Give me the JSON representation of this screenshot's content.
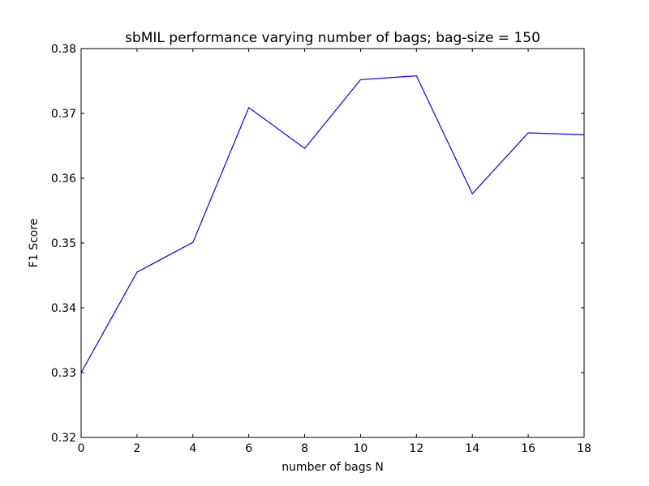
{
  "chart_data": {
    "type": "line",
    "title": "sbMIL performance varying number of bags; bag-size = 150",
    "xlabel": "number of bags N",
    "ylabel": "F1 Score",
    "xlim": [
      0,
      18
    ],
    "ylim": [
      0.32,
      0.38
    ],
    "xticks": [
      0,
      2,
      4,
      6,
      8,
      10,
      12,
      14,
      16,
      18
    ],
    "xtick_labels": [
      "0",
      "2",
      "4",
      "6",
      "8",
      "10",
      "12",
      "14",
      "16",
      "18"
    ],
    "yticks": [
      0.32,
      0.33,
      0.34,
      0.35,
      0.36,
      0.37,
      0.38
    ],
    "ytick_labels": [
      "0.32",
      "0.33",
      "0.34",
      "0.35",
      "0.36",
      "0.37",
      "0.38"
    ],
    "grid": false,
    "legend": "none",
    "series": [
      {
        "color": "#0000ff",
        "x": [
          0,
          2,
          4,
          6,
          8,
          10,
          12,
          14,
          16,
          18
        ],
        "y": [
          0.33,
          0.3455,
          0.3501,
          0.3709,
          0.3646,
          0.3752,
          0.3758,
          0.3576,
          0.367,
          0.3667
        ]
      }
    ]
  }
}
